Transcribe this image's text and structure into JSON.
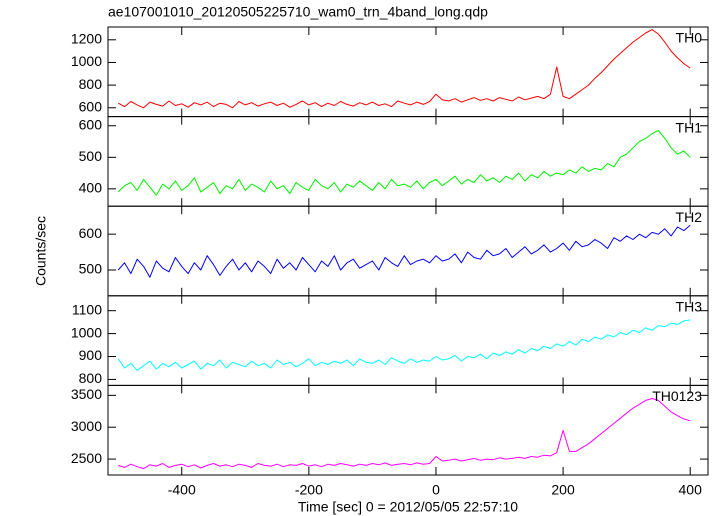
{
  "chart_data": [
    {
      "type": "line",
      "title": "ae107001010_20120505225710_wam0_trn_4band_long.qdp",
      "x": [
        -500,
        -490,
        -480,
        -470,
        -460,
        -450,
        -440,
        -430,
        -420,
        -410,
        -400,
        -390,
        -380,
        -370,
        -360,
        -350,
        -340,
        -330,
        -320,
        -310,
        -300,
        -290,
        -280,
        -270,
        -260,
        -250,
        -240,
        -230,
        -220,
        -210,
        -200,
        -190,
        -180,
        -170,
        -160,
        -150,
        -140,
        -130,
        -120,
        -110,
        -100,
        -90,
        -80,
        -70,
        -60,
        -50,
        -40,
        -30,
        -20,
        -10,
        0,
        10,
        20,
        30,
        40,
        50,
        60,
        70,
        80,
        90,
        100,
        110,
        120,
        130,
        140,
        150,
        160,
        170,
        180,
        190,
        200,
        210,
        220,
        230,
        240,
        250,
        260,
        270,
        280,
        290,
        300,
        310,
        320,
        330,
        340,
        350,
        360,
        370,
        380,
        390,
        400
      ],
      "series": [
        {
          "name": "TH0",
          "color": "#ff0000",
          "values": [
            640,
            610,
            655,
            625,
            600,
            650,
            630,
            615,
            660,
            620,
            635,
            605,
            645,
            625,
            650,
            610,
            640,
            630,
            600,
            655,
            625,
            645,
            615,
            635,
            650,
            620,
            640,
            605,
            630,
            660,
            625,
            645,
            610,
            640,
            620,
            655,
            630,
            615,
            645,
            625,
            650,
            620,
            635,
            610,
            660,
            640,
            625,
            650,
            630,
            655,
            720,
            670,
            660,
            680,
            650,
            670,
            690,
            665,
            680,
            660,
            690,
            675,
            660,
            695,
            670,
            685,
            700,
            680,
            720,
            960,
            700,
            680,
            720,
            760,
            800,
            860,
            910,
            970,
            1030,
            1080,
            1130,
            1180,
            1220,
            1260,
            1290,
            1250,
            1180,
            1100,
            1040,
            990,
            950
          ]
        }
      ],
      "xlim": [
        -516,
        428
      ],
      "xticks": [
        -400,
        -200,
        0,
        200,
        400
      ],
      "ylim": [
        522,
        1313
      ],
      "yticks": [
        600,
        800,
        1000,
        1200
      ]
    },
    {
      "type": "line",
      "x": [
        -500,
        -490,
        -480,
        -470,
        -460,
        -450,
        -440,
        -430,
        -420,
        -410,
        -400,
        -390,
        -380,
        -370,
        -360,
        -350,
        -340,
        -330,
        -320,
        -310,
        -300,
        -290,
        -280,
        -270,
        -260,
        -250,
        -240,
        -230,
        -220,
        -210,
        -200,
        -190,
        -180,
        -170,
        -160,
        -150,
        -140,
        -130,
        -120,
        -110,
        -100,
        -90,
        -80,
        -70,
        -60,
        -50,
        -40,
        -30,
        -20,
        -10,
        0,
        10,
        20,
        30,
        40,
        50,
        60,
        70,
        80,
        90,
        100,
        110,
        120,
        130,
        140,
        150,
        160,
        170,
        180,
        190,
        200,
        210,
        220,
        230,
        240,
        250,
        260,
        270,
        280,
        290,
        300,
        310,
        320,
        330,
        340,
        350,
        360,
        370,
        380,
        390,
        400
      ],
      "series": [
        {
          "name": "TH1",
          "color": "#00ee00",
          "values": [
            390,
            410,
            420,
            395,
            430,
            405,
            380,
            415,
            400,
            425,
            395,
            410,
            435,
            390,
            405,
            420,
            385,
            410,
            400,
            430,
            395,
            415,
            405,
            390,
            425,
            400,
            410,
            385,
            420,
            405,
            395,
            430,
            410,
            400,
            420,
            390,
            415,
            405,
            425,
            410,
            395,
            420,
            400,
            430,
            410,
            415,
            405,
            425,
            400,
            420,
            430,
            410,
            425,
            440,
            415,
            430,
            420,
            445,
            425,
            435,
            420,
            440,
            430,
            450,
            425,
            445,
            435,
            455,
            440,
            450,
            445,
            460,
            450,
            470,
            455,
            465,
            460,
            480,
            470,
            500,
            510,
            530,
            550,
            560,
            575,
            585,
            560,
            530,
            510,
            520,
            500
          ]
        }
      ],
      "xlim": [
        -516,
        428
      ],
      "xticks": [
        -400,
        -200,
        0,
        200,
        400
      ],
      "ylim": [
        345,
        629
      ],
      "yticks": [
        400,
        500,
        600
      ]
    },
    {
      "type": "line",
      "ylabel": "Counts/sec",
      "x": [
        -500,
        -490,
        -480,
        -470,
        -460,
        -450,
        -440,
        -430,
        -420,
        -410,
        -400,
        -390,
        -380,
        -370,
        -360,
        -350,
        -340,
        -330,
        -320,
        -310,
        -300,
        -290,
        -280,
        -270,
        -260,
        -250,
        -240,
        -230,
        -220,
        -210,
        -200,
        -190,
        -180,
        -170,
        -160,
        -150,
        -140,
        -130,
        -120,
        -110,
        -100,
        -90,
        -80,
        -70,
        -60,
        -50,
        -40,
        -30,
        -20,
        -10,
        0,
        10,
        20,
        30,
        40,
        50,
        60,
        70,
        80,
        90,
        100,
        110,
        120,
        130,
        140,
        150,
        160,
        170,
        180,
        190,
        200,
        210,
        220,
        230,
        240,
        250,
        260,
        270,
        280,
        290,
        300,
        310,
        320,
        330,
        340,
        350,
        360,
        370,
        380,
        390,
        400
      ],
      "series": [
        {
          "name": "TH2",
          "color": "#0000ff",
          "values": [
            500,
            520,
            490,
            530,
            510,
            480,
            525,
            505,
            495,
            535,
            510,
            490,
            520,
            500,
            540,
            515,
            485,
            510,
            530,
            500,
            520,
            495,
            525,
            510,
            490,
            530,
            505,
            520,
            500,
            535,
            515,
            495,
            525,
            510,
            540,
            500,
            520,
            530,
            505,
            515,
            525,
            500,
            535,
            520,
            510,
            540,
            515,
            525,
            530,
            520,
            540,
            525,
            530,
            545,
            520,
            550,
            535,
            530,
            555,
            540,
            545,
            560,
            535,
            550,
            565,
            545,
            555,
            570,
            550,
            560,
            575,
            555,
            580,
            565,
            570,
            585,
            575,
            560,
            590,
            580,
            595,
            585,
            600,
            590,
            605,
            600,
            615,
            595,
            620,
            610,
            625
          ]
        }
      ],
      "xlim": [
        -516,
        428
      ],
      "xticks": [
        -400,
        -200,
        0,
        200,
        400
      ],
      "ylim": [
        428,
        678
      ],
      "yticks": [
        500,
        600
      ]
    },
    {
      "type": "line",
      "x": [
        -500,
        -490,
        -480,
        -470,
        -460,
        -450,
        -440,
        -430,
        -420,
        -410,
        -400,
        -390,
        -380,
        -370,
        -360,
        -350,
        -340,
        -330,
        -320,
        -310,
        -300,
        -290,
        -280,
        -270,
        -260,
        -250,
        -240,
        -230,
        -220,
        -210,
        -200,
        -190,
        -180,
        -170,
        -160,
        -150,
        -140,
        -130,
        -120,
        -110,
        -100,
        -90,
        -80,
        -70,
        -60,
        -50,
        -40,
        -30,
        -20,
        -10,
        0,
        10,
        20,
        30,
        40,
        50,
        60,
        70,
        80,
        90,
        100,
        110,
        120,
        130,
        140,
        150,
        160,
        170,
        180,
        190,
        200,
        210,
        220,
        230,
        240,
        250,
        260,
        270,
        280,
        290,
        300,
        310,
        320,
        330,
        340,
        350,
        360,
        370,
        380,
        390,
        400
      ],
      "series": [
        {
          "name": "TH3",
          "color": "#00ffff",
          "values": [
            890,
            850,
            870,
            840,
            860,
            880,
            845,
            870,
            855,
            875,
            850,
            865,
            880,
            845,
            870,
            860,
            885,
            850,
            875,
            865,
            855,
            880,
            860,
            870,
            850,
            885,
            865,
            875,
            855,
            870,
            890,
            860,
            875,
            865,
            880,
            870,
            885,
            860,
            890,
            875,
            870,
            885,
            865,
            895,
            880,
            870,
            890,
            875,
            885,
            880,
            900,
            885,
            890,
            905,
            880,
            900,
            895,
            910,
            890,
            915,
            905,
            920,
            910,
            930,
            915,
            935,
            925,
            945,
            935,
            955,
            945,
            965,
            950,
            975,
            965,
            985,
            975,
            995,
            985,
            1005,
            995,
            1015,
            1005,
            1025,
            1015,
            1035,
            1030,
            1045,
            1040,
            1055,
            1060
          ]
        }
      ],
      "xlim": [
        -516,
        428
      ],
      "xticks": [
        -400,
        -200,
        0,
        200,
        400
      ],
      "ylim": [
        774,
        1165
      ],
      "yticks": [
        800,
        900,
        1000,
        1100
      ]
    },
    {
      "type": "line",
      "xlabel": "Time [sec] 0 = 2012/05/05 22:57:10",
      "x": [
        -500,
        -490,
        -480,
        -470,
        -460,
        -450,
        -440,
        -430,
        -420,
        -410,
        -400,
        -390,
        -380,
        -370,
        -360,
        -350,
        -340,
        -330,
        -320,
        -310,
        -300,
        -290,
        -280,
        -270,
        -260,
        -250,
        -240,
        -230,
        -220,
        -210,
        -200,
        -190,
        -180,
        -170,
        -160,
        -150,
        -140,
        -130,
        -120,
        -110,
        -100,
        -90,
        -80,
        -70,
        -60,
        -50,
        -40,
        -30,
        -20,
        -10,
        0,
        10,
        20,
        30,
        40,
        50,
        60,
        70,
        80,
        90,
        100,
        110,
        120,
        130,
        140,
        150,
        160,
        170,
        180,
        190,
        200,
        210,
        220,
        230,
        240,
        250,
        260,
        270,
        280,
        290,
        300,
        310,
        320,
        330,
        340,
        350,
        360,
        370,
        380,
        390,
        400
      ],
      "series": [
        {
          "name": "TH0123",
          "color": "#ff00ff",
          "values": [
            2400,
            2370,
            2420,
            2380,
            2350,
            2410,
            2390,
            2430,
            2370,
            2400,
            2420,
            2380,
            2410,
            2360,
            2400,
            2430,
            2390,
            2410,
            2380,
            2420,
            2400,
            2370,
            2430,
            2400,
            2390,
            2420,
            2380,
            2410,
            2400,
            2430,
            2390,
            2410,
            2380,
            2420,
            2400,
            2430,
            2410,
            2390,
            2420,
            2400,
            2430,
            2410,
            2440,
            2400,
            2420,
            2430,
            2410,
            2440,
            2420,
            2430,
            2540,
            2470,
            2480,
            2500,
            2470,
            2490,
            2510,
            2480,
            2500,
            2490,
            2520,
            2500,
            2510,
            2530,
            2510,
            2540,
            2530,
            2560,
            2550,
            2600,
            2950,
            2620,
            2620,
            2680,
            2740,
            2820,
            2900,
            2980,
            3060,
            3140,
            3220,
            3300,
            3360,
            3420,
            3450,
            3420,
            3330,
            3240,
            3180,
            3130,
            3100
          ]
        }
      ],
      "xlim": [
        -516,
        428
      ],
      "xticks": [
        -400,
        -200,
        0,
        200,
        400
      ],
      "ylim": [
        2250,
        3656
      ],
      "yticks": [
        2500,
        3000,
        3500
      ],
      "show_xtick_labels": true
    }
  ]
}
